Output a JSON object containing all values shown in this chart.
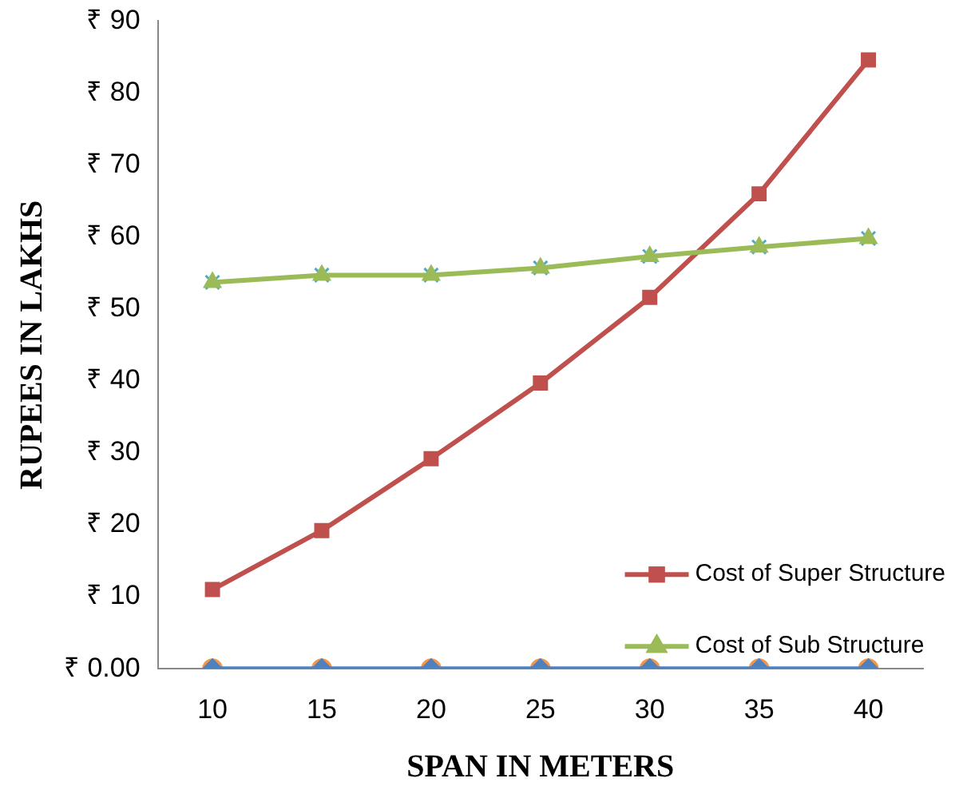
{
  "chart_data": {
    "type": "line",
    "xlabel": "SPAN IN METERS",
    "ylabel": "RUPEES IN LAKHS",
    "categories": [
      "10",
      "15",
      "20",
      "25",
      "30",
      "35",
      "40"
    ],
    "ylim": [
      0,
      90
    ],
    "yticks": [
      {
        "value": 0,
        "label": "₹ 0.00"
      },
      {
        "value": 10,
        "label": "₹ 10"
      },
      {
        "value": 20,
        "label": "₹ 20"
      },
      {
        "value": 30,
        "label": "₹ 30"
      },
      {
        "value": 40,
        "label": "₹ 40"
      },
      {
        "value": 50,
        "label": "₹ 50"
      },
      {
        "value": 60,
        "label": "₹ 60"
      },
      {
        "value": 70,
        "label": "₹ 70"
      },
      {
        "value": 80,
        "label": "₹ 80"
      },
      {
        "value": 90,
        "label": "₹ 90"
      }
    ],
    "grid": false,
    "legend": "bottom right",
    "line_style": "solid",
    "series": [
      {
        "type": "scatter",
        "color": "#f79646",
        "marker": "circle",
        "values": [
          0,
          0,
          0,
          0,
          0,
          0,
          0
        ]
      },
      {
        "color": "#4f81bd",
        "marker": "diamond",
        "values": [
          0,
          0,
          0,
          0,
          0,
          0,
          0
        ]
      },
      {
        "name": "Cost of Super Structure",
        "color": "#c0504d",
        "marker": "square",
        "values": [
          11,
          19.2,
          29.2,
          39.7,
          51.6,
          66,
          84.6
        ]
      },
      {
        "type": "scatter",
        "color": "#4bacc6",
        "marker": "cross",
        "values": [
          53.7,
          54.7,
          54.7,
          55.7,
          57.3,
          58.6,
          59.8
        ]
      },
      {
        "name": "Cost of Sub Structure",
        "color": "#9bbb59",
        "marker": "triangle",
        "values": [
          53.7,
          54.7,
          54.7,
          55.7,
          57.3,
          58.6,
          59.8
        ]
      }
    ]
  }
}
